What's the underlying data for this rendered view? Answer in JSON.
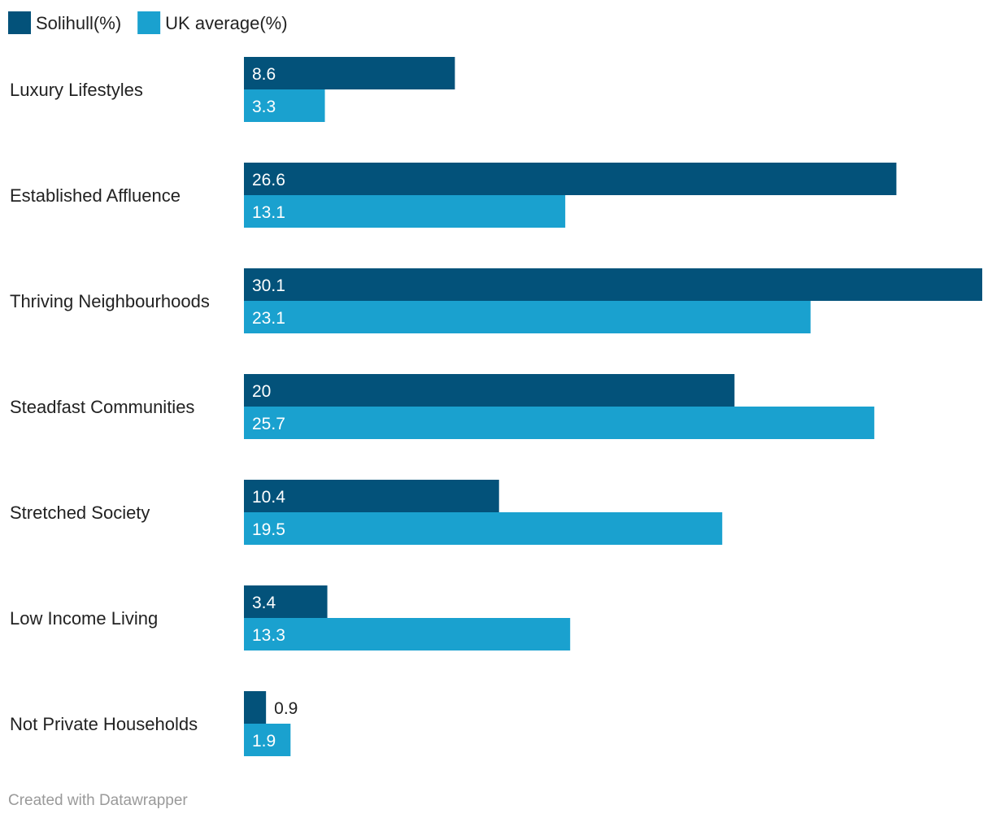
{
  "chart_data": {
    "type": "bar",
    "orientation": "horizontal",
    "categories": [
      "Luxury Lifestyles",
      "Established Affluence",
      "Thriving Neighbourhoods",
      "Steadfast Communities",
      "Stretched Society",
      "Low Income Living",
      "Not Private Households"
    ],
    "series": [
      {
        "name": "Solihull(%)",
        "color": "#03527a",
        "values": [
          8.6,
          26.6,
          30.1,
          20,
          10.4,
          3.4,
          0.9
        ]
      },
      {
        "name": "UK average(%)",
        "color": "#1aa1cf",
        "values": [
          3.3,
          13.1,
          23.1,
          25.7,
          19.5,
          13.3,
          1.9
        ]
      }
    ],
    "xlim": [
      0,
      30.1
    ],
    "legend_position": "top-left",
    "grid": false,
    "title": "",
    "xlabel": "",
    "ylabel": ""
  },
  "credit": "Created with Datawrapper"
}
